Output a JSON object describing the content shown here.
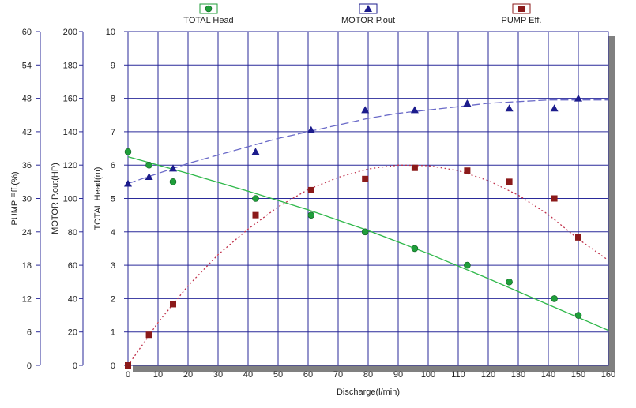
{
  "chart_data": {
    "type": "line",
    "xlabel": "Discharge(l/min)",
    "xlim": [
      0,
      160
    ],
    "x_ticks": [
      0,
      10,
      20,
      30,
      40,
      50,
      60,
      70,
      80,
      90,
      100,
      110,
      120,
      130,
      140,
      150,
      160
    ],
    "grid": true,
    "legend": "top",
    "axes": [
      {
        "id": "eff",
        "label": "PUMP Eff.(%)",
        "ylim": [
          0,
          60
        ],
        "ticks": [
          0,
          6,
          12,
          18,
          24,
          30,
          36,
          42,
          48,
          54,
          60
        ]
      },
      {
        "id": "pout",
        "label": "MOTOR P.out(HP)",
        "ylim": [
          0,
          200
        ],
        "ticks": [
          0,
          20,
          40,
          60,
          80,
          100,
          120,
          140,
          160,
          180,
          200
        ]
      },
      {
        "id": "head",
        "label": "TOTAL Head(m)",
        "ylim": [
          0,
          10
        ],
        "ticks": [
          0,
          1,
          2,
          3,
          4,
          5,
          6,
          7,
          8,
          9,
          10
        ]
      }
    ],
    "series": [
      {
        "name": "TOTAL Head",
        "axis": "head",
        "color": "#1f9e3a",
        "marker": "circle",
        "points": [
          [
            0,
            6.4
          ],
          [
            7,
            6.0
          ],
          [
            15,
            5.5
          ],
          [
            42.5,
            5.0
          ],
          [
            61,
            4.5
          ],
          [
            79,
            4.0
          ],
          [
            95.5,
            3.5
          ],
          [
            113,
            3.0
          ],
          [
            127,
            2.5
          ],
          [
            142,
            2.0
          ],
          [
            150,
            1.5
          ]
        ],
        "fit": [
          [
            0,
            6.25
          ],
          [
            20,
            5.75
          ],
          [
            40,
            5.22
          ],
          [
            60,
            4.66
          ],
          [
            80,
            4.04
          ],
          [
            100,
            3.35
          ],
          [
            120,
            2.6
          ],
          [
            140,
            1.82
          ],
          [
            160,
            1.05
          ]
        ]
      },
      {
        "name": "MOTOR P.out",
        "axis": "pout",
        "color": "#1c1c8c",
        "marker": "triangle",
        "points": [
          [
            0,
            109
          ],
          [
            7,
            113
          ],
          [
            15,
            118
          ],
          [
            42.5,
            128
          ],
          [
            61,
            141
          ],
          [
            79,
            153
          ],
          [
            95.5,
            153
          ],
          [
            113,
            157
          ],
          [
            127,
            154
          ],
          [
            142,
            154
          ],
          [
            150,
            160
          ]
        ],
        "fit": [
          [
            0,
            109
          ],
          [
            10,
            115
          ],
          [
            20,
            121
          ],
          [
            30,
            126
          ],
          [
            40,
            131
          ],
          [
            50,
            136
          ],
          [
            60,
            140
          ],
          [
            70,
            144
          ],
          [
            80,
            148
          ],
          [
            90,
            151
          ],
          [
            100,
            153
          ],
          [
            110,
            155
          ],
          [
            120,
            157
          ],
          [
            130,
            158
          ],
          [
            140,
            159
          ],
          [
            150,
            159
          ],
          [
            160,
            159
          ]
        ]
      },
      {
        "name": "PUMP Eff.",
        "axis": "eff",
        "color": "#8b1a1a",
        "marker": "square",
        "points": [
          [
            0,
            0
          ],
          [
            7,
            5.5
          ],
          [
            15,
            11
          ],
          [
            42.5,
            27
          ],
          [
            61,
            31.5
          ],
          [
            79,
            33.5
          ],
          [
            95.5,
            35.5
          ],
          [
            113,
            35
          ],
          [
            127,
            33
          ],
          [
            142,
            30
          ],
          [
            150,
            23
          ]
        ],
        "fit": [
          [
            0,
            0
          ],
          [
            10,
            7.7
          ],
          [
            20,
            14.3
          ],
          [
            30,
            19.9
          ],
          [
            40,
            24.5
          ],
          [
            50,
            28.5
          ],
          [
            60,
            31.6
          ],
          [
            70,
            33.8
          ],
          [
            80,
            35.3
          ],
          [
            90,
            36
          ],
          [
            100,
            35.9
          ],
          [
            110,
            35
          ],
          [
            120,
            33.2
          ],
          [
            130,
            30.6
          ],
          [
            140,
            27.1
          ],
          [
            150,
            22.7
          ],
          [
            160,
            18.9
          ]
        ]
      }
    ]
  }
}
